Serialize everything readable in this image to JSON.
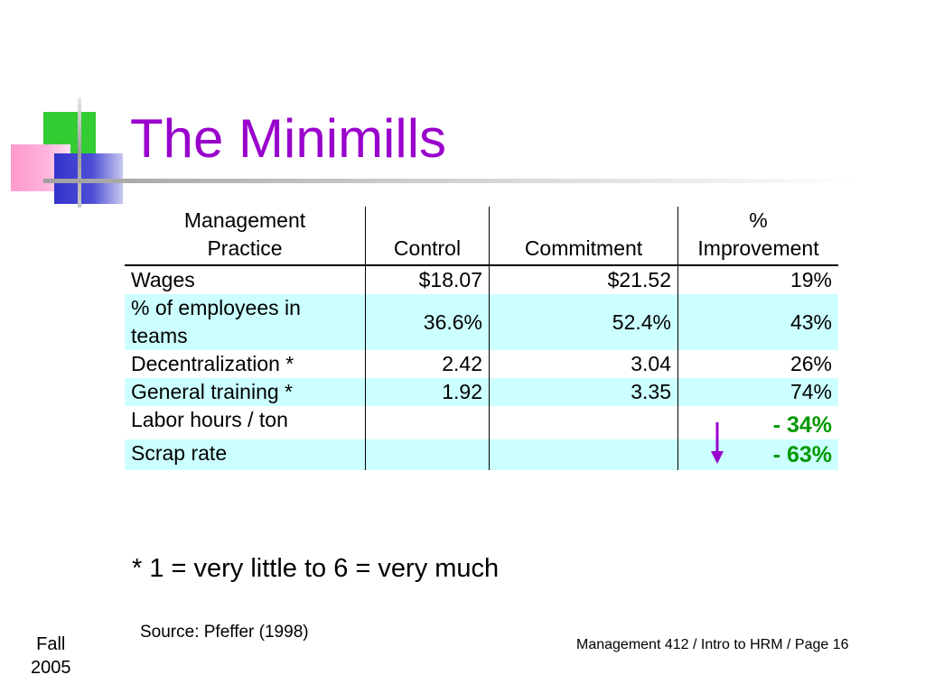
{
  "slide": {
    "title": "The Minimills",
    "table": {
      "headers": {
        "practice_line1": "Management",
        "practice_line2": "Practice",
        "control": "Control",
        "commitment": "Commitment",
        "improvement_line1": "%",
        "improvement_line2": "Improvement"
      },
      "rows": [
        {
          "practice": "Wages",
          "control": "$18.07",
          "commitment": "$21.52",
          "improvement": "19%"
        },
        {
          "practice": "% of employees in teams",
          "control": "36.6%",
          "commitment": "52.4%",
          "improvement": "43%"
        },
        {
          "practice": "Decentralization *",
          "control": "2.42",
          "commitment": "3.04",
          "improvement": "26%"
        },
        {
          "practice": "General training *",
          "control": "1.92",
          "commitment": "3.35",
          "improvement": "74%"
        },
        {
          "practice": "Labor hours / ton",
          "control": "",
          "commitment": "",
          "improvement": "- 34%"
        },
        {
          "practice": "Scrap rate",
          "control": "",
          "commitment": "",
          "improvement": "- 63%"
        }
      ]
    },
    "footnote": "* 1 = very little to 6 = very much",
    "source": "Source: Pfeffer (1998)",
    "term_line1": "Fall",
    "term_line2": "2005",
    "page_info": "Management 412 / Intro to HRM / Page 16",
    "colors": {
      "title": "#9900cc",
      "highlight_row": "#ccffff",
      "negative_improvement": "#009900",
      "arrow": "#9900cc"
    },
    "icons": {
      "decreasing": "down-arrow-icon"
    }
  }
}
